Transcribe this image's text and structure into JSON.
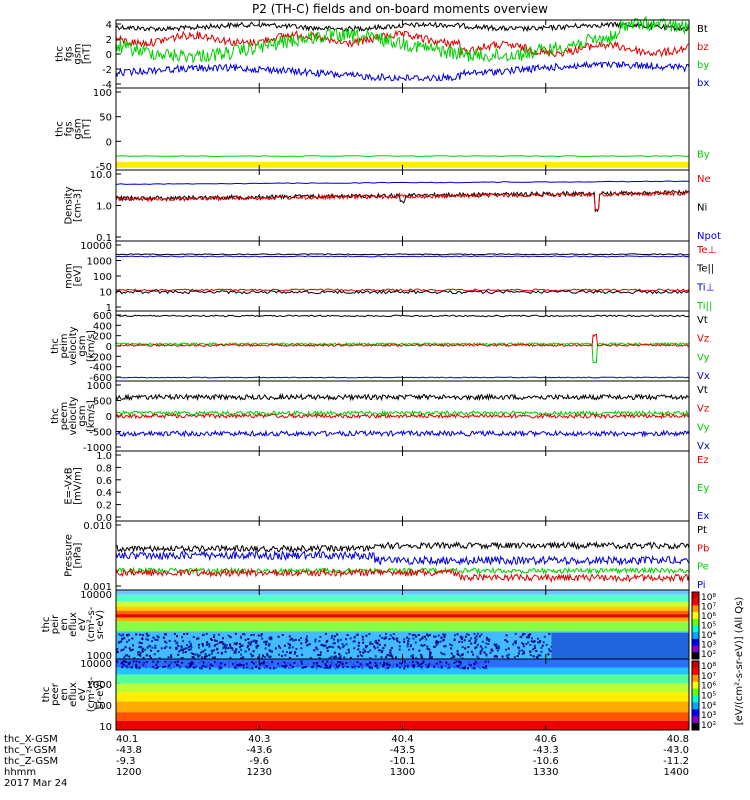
{
  "title": "P2 (TH-C) fields and on-board moments overview",
  "colors": {
    "black": "#000000",
    "red": "#e00000",
    "green": "#00d000",
    "blue": "#0000e0",
    "yellow": "#ffee00"
  },
  "chart_data": [
    {
      "type": "line",
      "ylabel": [
        "thc",
        "fgs",
        "gsm",
        "[nT]"
      ],
      "ylim": [
        -4,
        4
      ],
      "yticks": [
        "4",
        "2",
        "0",
        "-2",
        "-4"
      ],
      "legend": [
        {
          "name": "Bt",
          "color": "black"
        },
        {
          "name": "bz",
          "color": "red"
        },
        {
          "name": "by",
          "color": "green"
        },
        {
          "name": "bx",
          "color": "blue"
        }
      ]
    },
    {
      "type": "line",
      "ylabel": [
        "thc",
        "fgs",
        "gsm",
        "[nT]"
      ],
      "ylim": [
        -100,
        100
      ],
      "yticks": [
        "100",
        "50",
        "0",
        "-50"
      ],
      "legend": [
        {
          "name": "By",
          "color": "green"
        }
      ]
    },
    {
      "type": "line",
      "log": true,
      "ylabel": [
        "Density",
        "[cm-3]"
      ],
      "yticks": [
        "10.0",
        "1.0",
        "0.1"
      ],
      "legend": [
        {
          "name": "Ne",
          "color": "red"
        },
        {
          "name": "Ni",
          "color": "black"
        },
        {
          "name": "Npot",
          "color": "blue"
        }
      ]
    },
    {
      "type": "line",
      "log": true,
      "ylabel": [
        "mom",
        "[eV]"
      ],
      "yticks": [
        "10000",
        "1000",
        "100",
        "10",
        "1"
      ],
      "legend": [
        {
          "name": "Te⊥",
          "color": "red"
        },
        {
          "name": "Te||",
          "color": "black"
        },
        {
          "name": "Ti⊥",
          "color": "blue"
        },
        {
          "name": "Ti||",
          "color": "green"
        }
      ]
    },
    {
      "type": "line",
      "ylabel": [
        "thc",
        "peim",
        "velocity",
        "gsm",
        "[km/s]"
      ],
      "ylim": [
        -600,
        600
      ],
      "yticks": [
        "600",
        "400",
        "200",
        "0",
        "-200",
        "-400",
        "-600"
      ],
      "legend": [
        {
          "name": "Vt",
          "color": "black"
        },
        {
          "name": "Vz",
          "color": "red"
        },
        {
          "name": "Vy",
          "color": "green"
        },
        {
          "name": "Vx",
          "color": "blue"
        }
      ]
    },
    {
      "type": "line",
      "ylabel": [
        "thc",
        "peem",
        "velocity",
        "gsm",
        "[km/s]"
      ],
      "ylim": [
        -1000,
        1000
      ],
      "yticks": [
        "1000",
        "500",
        "0",
        "-500",
        "-1000"
      ],
      "legend": [
        {
          "name": "Vt",
          "color": "black"
        },
        {
          "name": "Vz",
          "color": "red"
        },
        {
          "name": "Vy",
          "color": "green"
        },
        {
          "name": "Vx",
          "color": "blue"
        }
      ]
    },
    {
      "type": "line",
      "ylabel": [
        "E=-VxB",
        "[mV/m]"
      ],
      "ylim": [
        0,
        1
      ],
      "yticks": [
        "1.0",
        "0.8",
        "0.6",
        "0.4",
        "0.2",
        "0.0"
      ],
      "legend": [
        {
          "name": "Ez",
          "color": "red"
        },
        {
          "name": "Ey",
          "color": "green"
        },
        {
          "name": "Ex",
          "color": "blue"
        }
      ]
    },
    {
      "type": "line",
      "log": true,
      "ylabel": [
        "Pressure",
        "[nPa]"
      ],
      "yticks": [
        "0.010",
        "0.001"
      ],
      "legend": [
        {
          "name": "Pt",
          "color": "black"
        },
        {
          "name": "Pb",
          "color": "red"
        },
        {
          "name": "Pe",
          "color": "green"
        },
        {
          "name": "Pi",
          "color": "blue"
        }
      ]
    },
    {
      "type": "heatmap",
      "ylabel": [
        "thc",
        "peir",
        "en",
        "eflux",
        "eV",
        "(cm²-s-",
        "sr-eV)"
      ],
      "yticks": [
        "10000",
        "1000"
      ]
    },
    {
      "type": "heatmap",
      "ylabel": [
        "thc",
        "peer",
        "en",
        "eflux",
        "eV",
        "(cm²-s-",
        "sr-eV)"
      ],
      "yticks": [
        "10000",
        "1000",
        "100",
        "10"
      ]
    }
  ],
  "colorbar": {
    "label": "[eV/(cm²-s-sr-eV)] (All Qs)",
    "ticks_top": [
      "10⁸",
      "10⁷",
      "10⁶",
      "10⁵",
      "10⁴",
      "10³",
      "10²"
    ],
    "ticks_bottom": [
      "10⁸",
      "10⁷",
      "10⁶",
      "10⁵",
      "10⁴",
      "10³",
      "10²"
    ]
  },
  "xaxis": {
    "rows": [
      {
        "label": "thc_X-GSM",
        "values": [
          "40.1",
          "40.3",
          "40.4",
          "40.6",
          "40.8"
        ]
      },
      {
        "label": "thc_Y-GSM",
        "values": [
          "-43.8",
          "-43.6",
          "-43.5",
          "-43.3",
          "-43.0"
        ]
      },
      {
        "label": "thc_Z-GSM",
        "values": [
          "-9.3",
          "-9.6",
          "-10.1",
          "-10.6",
          "-11.2"
        ]
      },
      {
        "label": "hhmm",
        "values": [
          "1200",
          "1230",
          "1300",
          "1330",
          "1400"
        ]
      }
    ],
    "date": "2017 Mar 24"
  }
}
